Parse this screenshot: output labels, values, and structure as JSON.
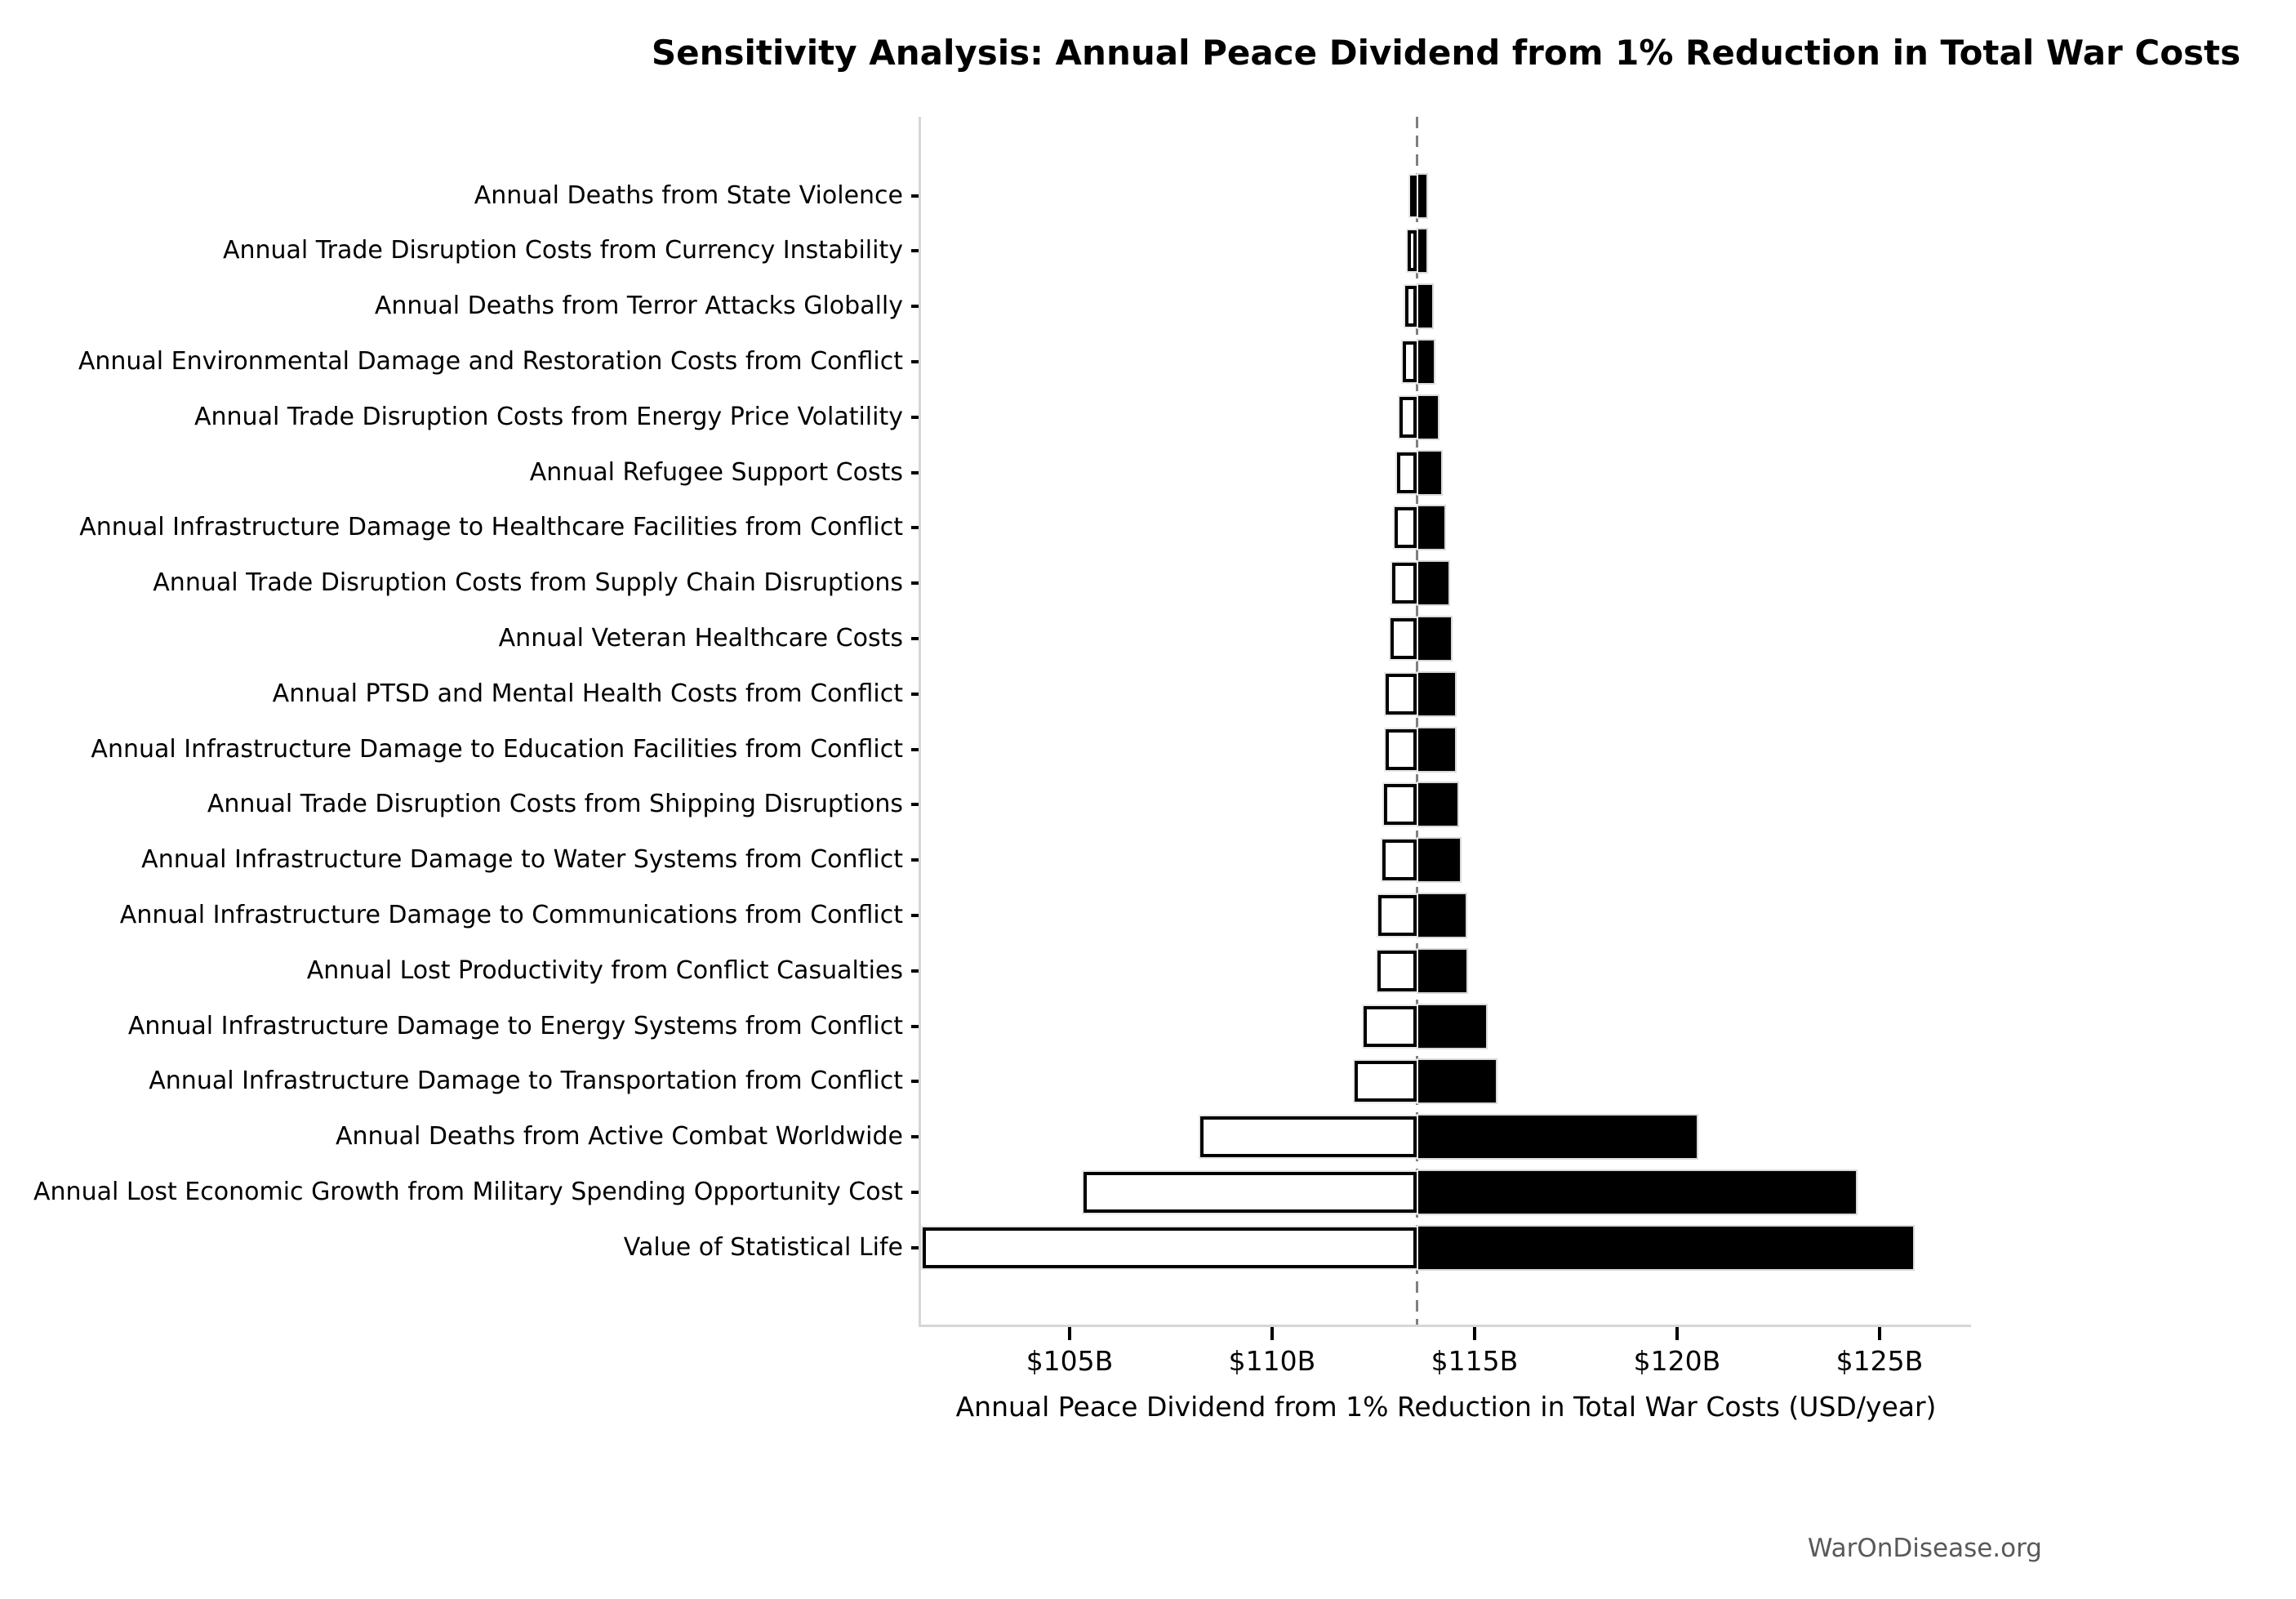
{
  "title": "Sensitivity Analysis: Annual Peace Dividend from 1% Reduction in Total War Costs",
  "xlabel": "Annual Peace Dividend from 1% Reduction in Total War Costs (USD/year)",
  "watermark": "WarOnDisease.org",
  "chart_data": {
    "type": "bar",
    "subtype": "tornado-horizontal",
    "title": "Sensitivity Analysis: Annual Peace Dividend from 1% Reduction in Total War Costs",
    "xlabel": "Annual Peace Dividend from 1% Reduction in Total War Costs (USD/year)",
    "ylabel": "",
    "unit": "USD billions per year",
    "baseline_value": 113.57,
    "xlim": [
      101.33,
      127.26
    ],
    "grid": false,
    "legend": "none",
    "x_ticks": [
      {
        "value": 105,
        "label": "$105B"
      },
      {
        "value": 110,
        "label": "$110B"
      },
      {
        "value": 115,
        "label": "$115B"
      },
      {
        "value": 120,
        "label": "$120B"
      },
      {
        "value": 125,
        "label": "$125B"
      }
    ],
    "categories": [
      "Annual Deaths from State Violence",
      "Annual Trade Disruption Costs from Currency Instability",
      "Annual Deaths from Terror Attacks Globally",
      "Annual Environmental Damage and Restoration Costs from Conflict",
      "Annual Trade Disruption Costs from Energy Price Volatility",
      "Annual Refugee Support Costs",
      "Annual Infrastructure Damage to Healthcare Facilities from Conflict",
      "Annual Trade Disruption Costs from Supply Chain Disruptions",
      "Annual Veteran Healthcare Costs",
      "Annual PTSD and Mental Health Costs from Conflict",
      "Annual Infrastructure Damage to Education Facilities from Conflict",
      "Annual Trade Disruption Costs from Shipping Disruptions",
      "Annual Infrastructure Damage to Water Systems from Conflict",
      "Annual Infrastructure Damage to Communications from Conflict",
      "Annual Lost Productivity from Conflict Casualties",
      "Annual Infrastructure Damage to Energy Systems from Conflict",
      "Annual Infrastructure Damage to Transportation from Conflict",
      "Annual Deaths from Active Combat Worldwide",
      "Annual Lost Economic Growth from Military Spending Opportunity Cost",
      "Value of Statistical Life"
    ],
    "series": [
      {
        "name": "low",
        "values": [
          113.4,
          113.34,
          113.29,
          113.22,
          113.15,
          113.08,
          113.03,
          112.96,
          112.92,
          112.8,
          112.8,
          112.77,
          112.72,
          112.63,
          112.61,
          112.26,
          112.04,
          108.22,
          105.34,
          101.37
        ]
      },
      {
        "name": "high",
        "values": [
          113.85,
          113.85,
          113.99,
          114.03,
          114.13,
          114.21,
          114.3,
          114.39,
          114.45,
          114.56,
          114.55,
          114.62,
          114.68,
          114.81,
          114.83,
          115.32,
          115.56,
          120.52,
          124.46,
          125.87
        ]
      }
    ],
    "colors": {
      "low_fill": "#ffffff",
      "low_edge": "#000000",
      "high_fill": "#000000",
      "baseline_line": "#7f7f7f",
      "spine": "#d6d6d6",
      "watermark_text": "#595959"
    }
  }
}
